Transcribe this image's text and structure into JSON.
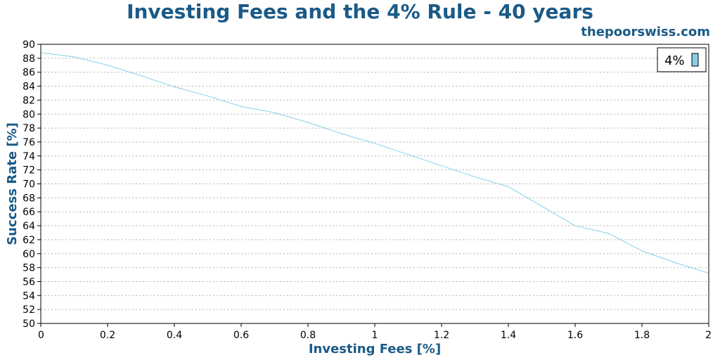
{
  "chart_data": {
    "type": "line",
    "title": "Investing Fees and the 4% Rule - 40 years",
    "watermark": "thepoorswiss.com",
    "xlabel": "Investing Fees [%]",
    "ylabel": "Success Rate [%]",
    "xlim": [
      0,
      2
    ],
    "ylim": [
      50,
      90
    ],
    "x_ticks": [
      "0",
      "0.2",
      "0.4",
      "0.6",
      "0.8",
      "1",
      "1.2",
      "1.4",
      "1.6",
      "1.8",
      "2"
    ],
    "y_ticks": [
      "50",
      "52",
      "54",
      "56",
      "58",
      "60",
      "62",
      "64",
      "66",
      "68",
      "70",
      "72",
      "74",
      "76",
      "78",
      "80",
      "82",
      "84",
      "86",
      "88",
      "90"
    ],
    "grid": "horizontal-dotted",
    "legend_position": "top-right",
    "series": [
      {
        "name": "4%",
        "color": "#87ceeb",
        "x": [
          0,
          0.1,
          0.2,
          0.3,
          0.4,
          0.5,
          0.6,
          0.7,
          0.8,
          0.9,
          1.0,
          1.1,
          1.2,
          1.3,
          1.4,
          1.5,
          1.6,
          1.7,
          1.8,
          1.9,
          2.0
        ],
        "y": [
          88.8,
          88.2,
          87.0,
          85.5,
          83.9,
          82.6,
          81.1,
          80.2,
          78.8,
          77.2,
          75.8,
          74.2,
          72.6,
          71.0,
          69.6,
          66.8,
          64.0,
          62.9,
          60.4,
          58.7,
          57.2
        ]
      }
    ]
  }
}
